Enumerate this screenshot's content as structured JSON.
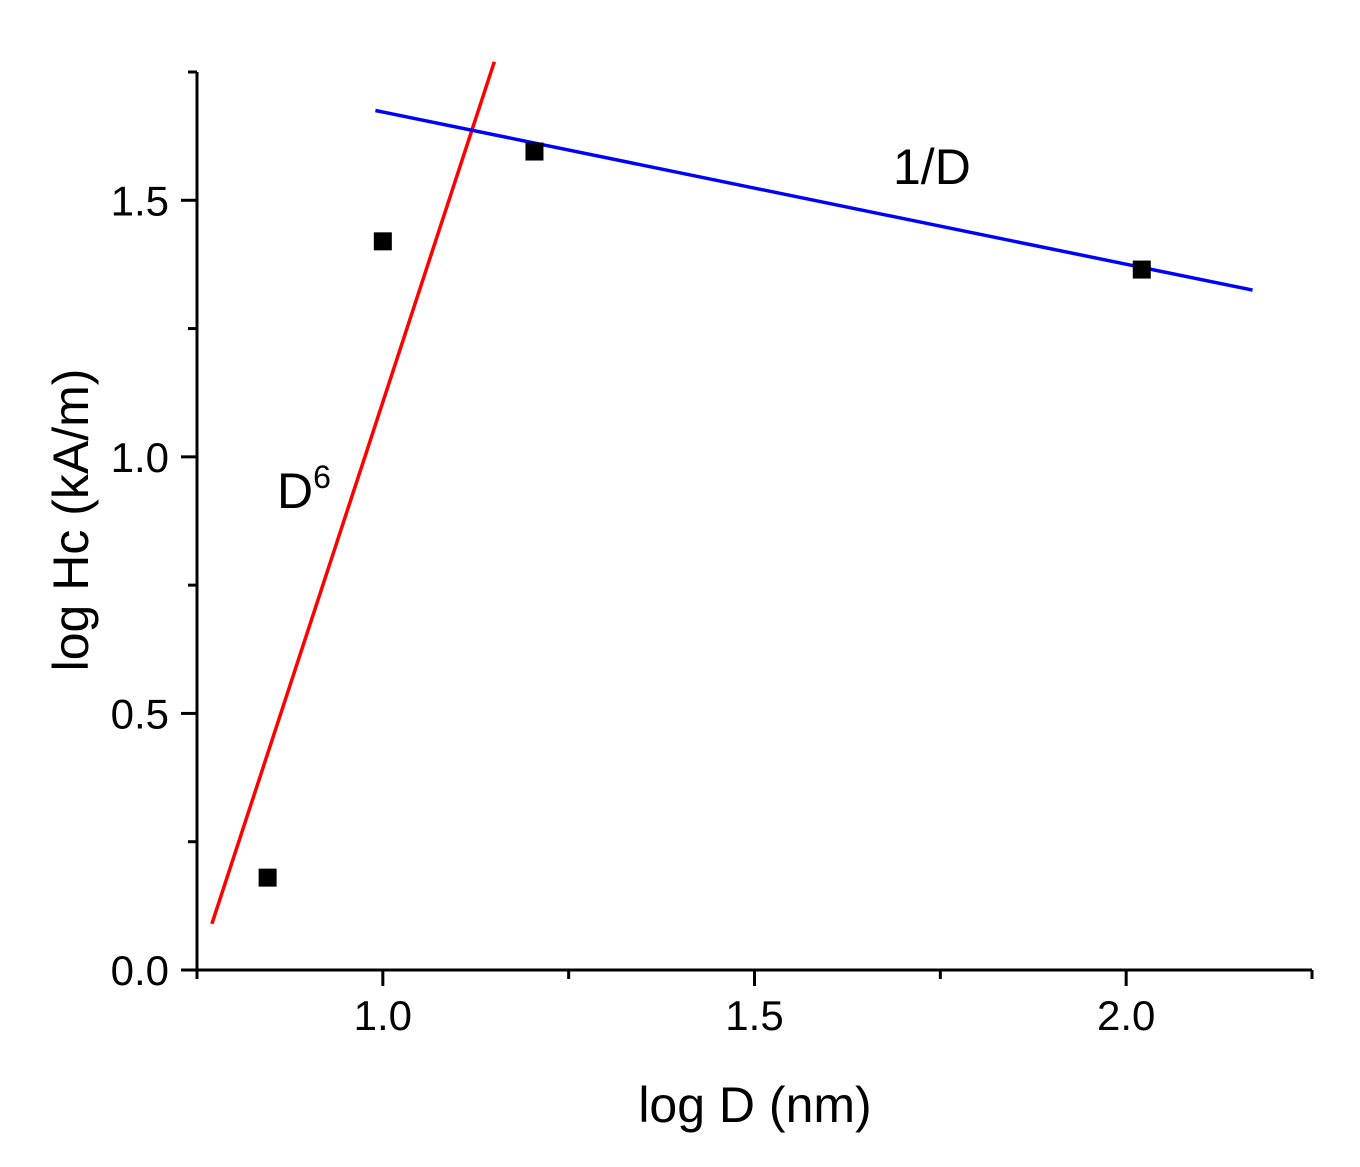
{
  "chart_data": {
    "type": "scatter",
    "title": "",
    "xlabel": "log D (nm)",
    "ylabel": "log Hc (kA/m)",
    "xlim": [
      0.75,
      2.25
    ],
    "ylim": [
      0.0,
      1.75
    ],
    "x_ticks": [
      1.0,
      1.5,
      2.0
    ],
    "x_tick_labels": [
      "1.0",
      "1.5",
      "2.0"
    ],
    "x_minor_ticks": [
      0.75,
      1.25,
      1.75,
      2.25
    ],
    "y_ticks": [
      0.0,
      0.5,
      1.0,
      1.5
    ],
    "y_tick_labels": [
      "0.0",
      "0.5",
      "1.0",
      "1.5"
    ],
    "y_minor_ticks": [
      0.25,
      0.75,
      1.25,
      1.75
    ],
    "grid": false,
    "legend": "none",
    "series": [
      {
        "marker": "square",
        "color": "#000000",
        "points": [
          {
            "x": 0.845,
            "y": 0.18
          },
          {
            "x": 1.0,
            "y": 1.42
          },
          {
            "x": 1.204,
            "y": 1.595
          },
          {
            "x": 2.021,
            "y": 1.365
          }
        ]
      }
    ],
    "fit_lines": [
      {
        "label": "D",
        "label_superscript": "6",
        "color": "#ff0000",
        "points": [
          {
            "x": 0.77,
            "y": 0.09
          },
          {
            "x": 1.15,
            "y": 1.77
          }
        ]
      },
      {
        "label": "1/D",
        "label_superscript": "",
        "color": "#0000ff",
        "points": [
          {
            "x": 0.99,
            "y": 1.675
          },
          {
            "x": 2.17,
            "y": 1.325
          }
        ]
      }
    ]
  }
}
